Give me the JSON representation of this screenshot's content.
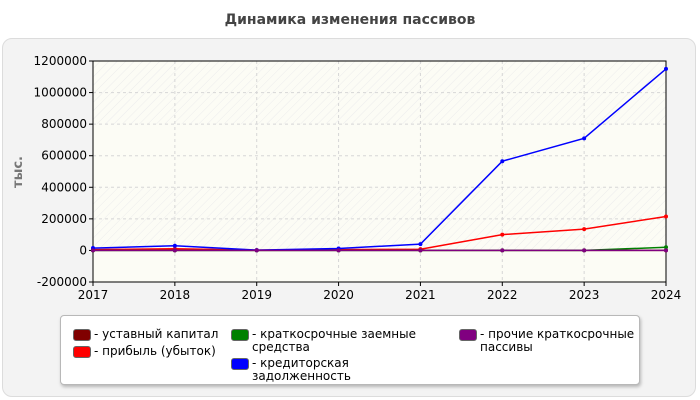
{
  "chart_data": {
    "type": "line",
    "title": "Динамика изменения пассивов",
    "ylabel": "тыс.",
    "xlabel": "",
    "x": [
      "2017",
      "2018",
      "2019",
      "2020",
      "2021",
      "2022",
      "2023",
      "2024"
    ],
    "ylim": [
      -200000,
      1200000
    ],
    "yticks": [
      -200000,
      0,
      200000,
      400000,
      600000,
      800000,
      1000000,
      1200000
    ],
    "grid": true,
    "legend_position": "bottom",
    "series": [
      {
        "name": "- уставный капитал",
        "color": "#800000",
        "values": [
          100,
          100,
          100,
          100,
          100,
          100,
          100,
          100
        ]
      },
      {
        "name": "- прибыль (убыток)",
        "color": "#ff0000",
        "values": [
          5000,
          10000,
          2000,
          5000,
          8000,
          100000,
          135000,
          215000
        ]
      },
      {
        "name": "- краткосрочные заемные средства",
        "color": "#008000",
        "values": [
          0,
          0,
          0,
          0,
          0,
          0,
          0,
          20000
        ]
      },
      {
        "name": "- кредиторская задолженность",
        "color": "#0000ff",
        "values": [
          15000,
          30000,
          2000,
          12000,
          40000,
          565000,
          710000,
          1150000
        ]
      },
      {
        "name": "- прочие краткосрочные пассивы",
        "color": "#800080",
        "values": [
          0,
          0,
          0,
          0,
          0,
          0,
          0,
          0
        ]
      }
    ]
  }
}
